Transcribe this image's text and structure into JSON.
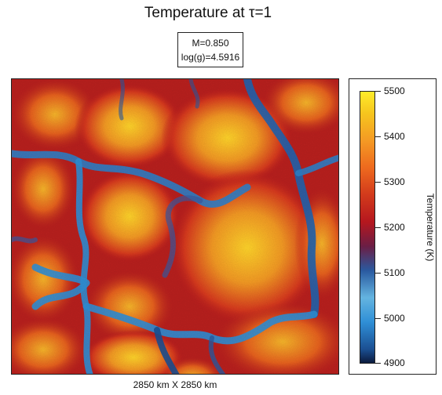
{
  "chart_data": {
    "type": "heatmap",
    "title": "Temperature at τ=1",
    "params": [
      "M=0.850",
      "log(g)=4.5916"
    ],
    "extent_label": "2850 km  X  2850 km",
    "colorbar": {
      "label": "Temperature (K)",
      "range": [
        4900,
        5500
      ],
      "ticks": [
        "5500",
        "5400",
        "5300",
        "5200",
        "5100",
        "5000",
        "4900"
      ]
    },
    "colormap": [
      "#0b1a3d",
      "#2f8fd6",
      "#6b1e45",
      "#d23a1c",
      "#f49a24",
      "#ffec2a"
    ]
  }
}
